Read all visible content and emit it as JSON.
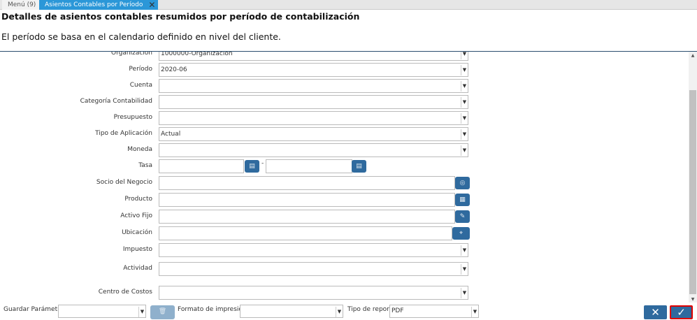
{
  "tabs": [
    {
      "label": "Menú (9)"
    },
    {
      "label": "Asientos Contables por Período"
    }
  ],
  "title": "Detalles de asientos contables resumidos por período de contabilización",
  "description": "El período se basa en el calendario definido en nivel del cliente.",
  "fields": {
    "organizacion": {
      "label": "Organización",
      "value": "1000000-Organización"
    },
    "periodo": {
      "label": "Período",
      "value": "2020-06"
    },
    "cuenta": {
      "label": "Cuenta",
      "value": ""
    },
    "categoria": {
      "label": "Categoría Contabilidad",
      "value": ""
    },
    "presupuesto": {
      "label": "Presupuesto",
      "value": ""
    },
    "tipo_aplicacion": {
      "label": "Tipo de Aplicación",
      "value": "Actual"
    },
    "moneda": {
      "label": "Moneda",
      "value": ""
    },
    "tasa": {
      "label": "Tasa",
      "from": "",
      "to": "",
      "separator": "-"
    },
    "socio": {
      "label": "Socio del Negocio",
      "value": ""
    },
    "producto": {
      "label": "Producto",
      "value": ""
    },
    "activo": {
      "label": "Activo Fijo",
      "value": ""
    },
    "ubicacion": {
      "label": "Ubicación",
      "value": ""
    },
    "impuesto": {
      "label": "Impuesto",
      "value": ""
    },
    "actividad": {
      "label": "Actividad",
      "value": ""
    },
    "centro": {
      "label": "Centro de Costos",
      "value": ""
    }
  },
  "bottom": {
    "guardar_label": "Guardar Parámetro",
    "guardar_value": "",
    "formato_label": "Formato de impresión",
    "formato_value": "",
    "tipo_label": "Tipo de reporte",
    "tipo_value": "PDF"
  },
  "colors": {
    "accent": "#2b97d8",
    "button": "#2f6a9e",
    "ok_border": "#e00000"
  }
}
